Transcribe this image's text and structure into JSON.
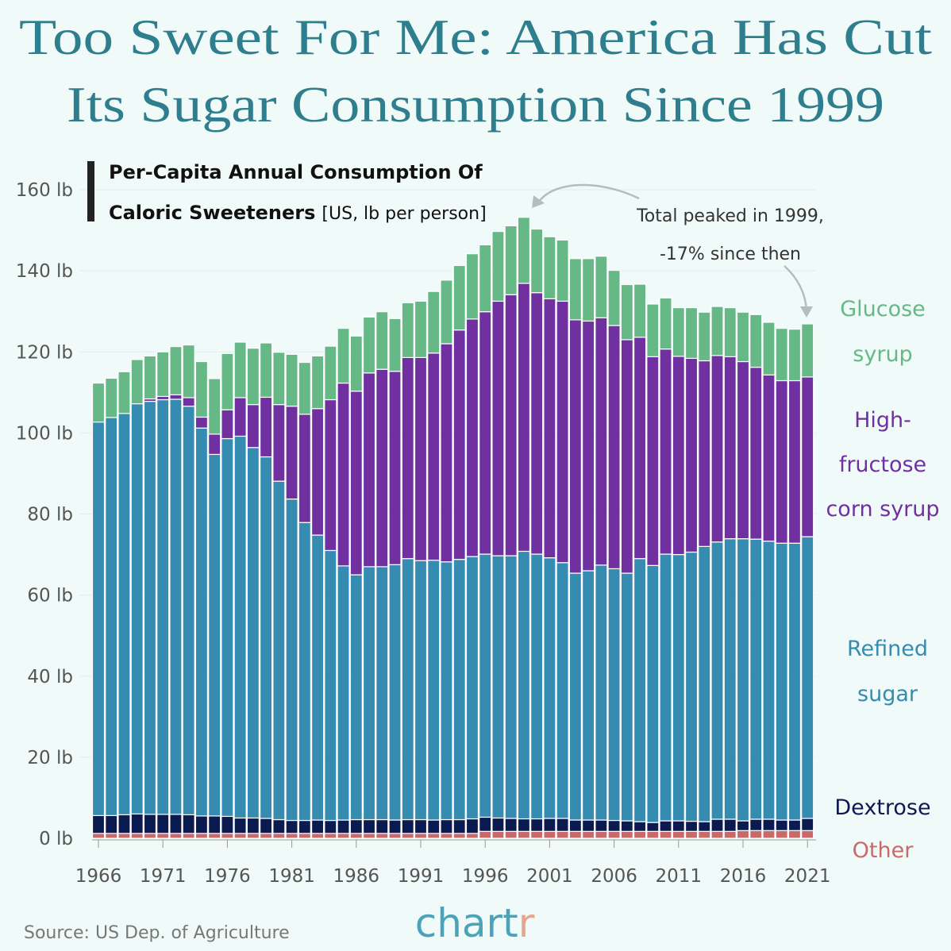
{
  "title": {
    "line1": "Too Sweet For Me: America Has Cut",
    "line2": "Its Sugar Consumption Since 1999"
  },
  "subtitle": {
    "line1": "Per-Capita Annual Consumption Of",
    "line2_bold": "Caloric Sweeteners",
    "line2_unit": "[US, lb per person]"
  },
  "annotation": {
    "line1": "Total peaked in 1999,",
    "line2": "-17% since then"
  },
  "source": "Source: US Dep. of Agriculture",
  "logo": {
    "main": "chart",
    "accent": "r"
  },
  "colors": {
    "background": "#f0faf8",
    "title": "#2f7e8e",
    "glucose": "#66b886",
    "hfcs": "#7030a0",
    "refined": "#368bb0",
    "dextrose": "#0b1a4f",
    "other": "#c86a6a"
  },
  "chart_data": {
    "type": "bar",
    "stacked": true,
    "xlabel": "",
    "ylabel": "",
    "ylim": [
      0,
      160
    ],
    "y_ticks": [
      "0 lb",
      "20 lb",
      "40 lb",
      "60 lb",
      "80 lb",
      "100 lb",
      "120 lb",
      "140 lb",
      "160 lb"
    ],
    "x_ticks": [
      "1966",
      "1971",
      "1976",
      "1981",
      "1986",
      "1991",
      "1996",
      "2001",
      "2006",
      "2011",
      "2016",
      "2021"
    ],
    "grid": true,
    "legend": "right (direct labels)",
    "categories": [
      1966,
      1967,
      1968,
      1969,
      1970,
      1971,
      1972,
      1973,
      1974,
      1975,
      1976,
      1977,
      1978,
      1979,
      1980,
      1981,
      1982,
      1983,
      1984,
      1985,
      1986,
      1987,
      1988,
      1989,
      1990,
      1991,
      1992,
      1993,
      1994,
      1995,
      1996,
      1997,
      1998,
      1999,
      2000,
      2001,
      2002,
      2003,
      2004,
      2005,
      2006,
      2007,
      2008,
      2009,
      2010,
      2011,
      2012,
      2013,
      2014,
      2015,
      2016,
      2017,
      2018,
      2019,
      2020,
      2021
    ],
    "series": [
      {
        "name": "Other",
        "label_lines": [
          "Other"
        ],
        "color_key": "other",
        "values": [
          1.2,
          1.2,
          1.2,
          1.2,
          1.2,
          1.2,
          1.2,
          1.2,
          1.2,
          1.2,
          1.2,
          1.2,
          1.2,
          1.2,
          1.2,
          1.2,
          1.2,
          1.2,
          1.2,
          1.2,
          1.2,
          1.2,
          1.2,
          1.2,
          1.2,
          1.2,
          1.2,
          1.2,
          1.2,
          1.2,
          1.7,
          1.7,
          1.7,
          1.7,
          1.7,
          1.7,
          1.7,
          1.7,
          1.7,
          1.7,
          1.7,
          1.7,
          1.7,
          1.7,
          1.7,
          1.7,
          1.7,
          1.7,
          1.7,
          1.7,
          1.9,
          1.9,
          1.9,
          1.9,
          1.9,
          1.9
        ]
      },
      {
        "name": "Dextrose",
        "label_lines": [
          "Dextrose"
        ],
        "color_key": "dextrose",
        "values": [
          4.4,
          4.4,
          4.6,
          4.8,
          4.7,
          4.7,
          4.7,
          4.6,
          4.3,
          4.3,
          4.2,
          3.8,
          3.8,
          3.7,
          3.4,
          3.2,
          3.2,
          3.3,
          3.2,
          3.3,
          3.4,
          3.4,
          3.4,
          3.3,
          3.4,
          3.4,
          3.3,
          3.4,
          3.4,
          3.6,
          3.5,
          3.3,
          3.2,
          3.1,
          3.1,
          3.2,
          3.2,
          2.8,
          2.8,
          2.8,
          2.7,
          2.6,
          2.4,
          2.2,
          2.6,
          2.6,
          2.5,
          2.4,
          3.0,
          3.0,
          2.4,
          2.8,
          2.8,
          2.6,
          2.6,
          3.0
        ]
      },
      {
        "name": "Refined sugar",
        "label_lines": [
          "Refined",
          "sugar"
        ],
        "color_key": "refined",
        "values": [
          97.1,
          98.2,
          99.0,
          101.2,
          101.9,
          102.3,
          102.4,
          100.8,
          95.7,
          89.2,
          93.2,
          94.2,
          91.4,
          89.2,
          83.5,
          79.3,
          73.5,
          70.3,
          66.6,
          62.7,
          60.4,
          62.4,
          62.4,
          63.0,
          64.4,
          63.9,
          64.1,
          63.6,
          64.2,
          64.7,
          64.9,
          64.7,
          64.8,
          66.0,
          65.3,
          64.3,
          63.1,
          60.9,
          61.5,
          62.9,
          62.1,
          61.1,
          64.9,
          63.4,
          65.8,
          65.7,
          66.4,
          67.9,
          68.4,
          69.2,
          69.6,
          69.1,
          68.6,
          68.3,
          68.3,
          69.5
        ]
      },
      {
        "name": "High-fructose corn syrup",
        "label_lines": [
          "High-",
          "fructose",
          "corn syrup"
        ],
        "color_key": "hfcs",
        "values": [
          0,
          0,
          0,
          0,
          0.6,
          0.8,
          1.1,
          2.1,
          2.7,
          5.0,
          7.1,
          9.5,
          10.6,
          14.7,
          18.9,
          22.9,
          26.7,
          31.2,
          37.2,
          45.1,
          45.3,
          47.8,
          48.7,
          47.7,
          49.6,
          50.1,
          51.1,
          53.8,
          56.6,
          58.6,
          59.8,
          62.8,
          64.4,
          66.1,
          64.5,
          63.9,
          64.5,
          62.5,
          61.6,
          61.0,
          60.0,
          57.6,
          54.6,
          51.5,
          50.6,
          48.9,
          47.8,
          45.8,
          46.0,
          44.9,
          43.7,
          42.4,
          41.0,
          40.1,
          40.1,
          39.4
        ]
      },
      {
        "name": "Glucose syrup",
        "label_lines": [
          "Glucose",
          "syrup"
        ],
        "color_key": "glucose",
        "values": [
          9.6,
          9.7,
          10.3,
          10.9,
          10.6,
          11.0,
          11.9,
          13.0,
          13.7,
          13.7,
          13.9,
          13.7,
          13.9,
          13.4,
          12.9,
          12.8,
          12.8,
          13.0,
          13.2,
          13.5,
          13.6,
          13.8,
          14.2,
          13.0,
          13.5,
          13.9,
          15.2,
          15.7,
          15.9,
          16.1,
          16.5,
          17.2,
          17.0,
          16.3,
          15.7,
          15.3,
          15.1,
          15.1,
          15.4,
          15.2,
          13.6,
          13.6,
          13.1,
          13.0,
          12.6,
          12.0,
          12.5,
          12.0,
          12.1,
          12.1,
          12.2,
          13.0,
          13.0,
          12.9,
          12.7,
          13.1
        ]
      }
    ]
  }
}
